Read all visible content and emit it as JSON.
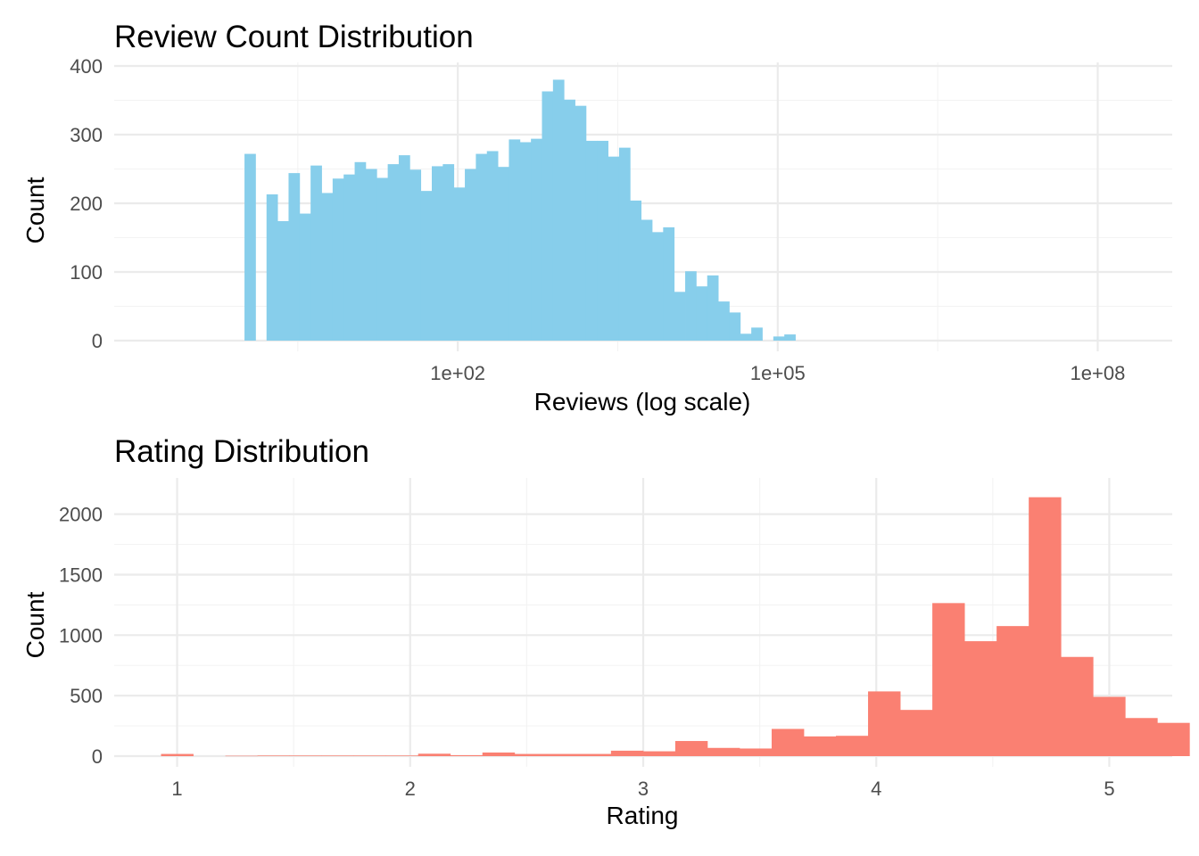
{
  "chart_data": [
    {
      "type": "bar",
      "title": "Review Count Distribution",
      "xlabel": "Reviews (log scale)",
      "ylabel": "Count",
      "x_scale": "log10",
      "xlim": [
        0.06,
        500000000
      ],
      "ylim": [
        0,
        400
      ],
      "grid": true,
      "color": "#87CEEB",
      "x_ticks": [
        {
          "value": 100,
          "label": "1e+02"
        },
        {
          "value": 100000,
          "label": "1e+05"
        },
        {
          "value": 100000000,
          "label": "1e+08"
        }
      ],
      "y_ticks": [
        {
          "value": 0,
          "label": "0"
        },
        {
          "value": 100,
          "label": "100"
        },
        {
          "value": 200,
          "label": "200"
        },
        {
          "value": 300,
          "label": "300"
        },
        {
          "value": 400,
          "label": "400"
        }
      ],
      "bin_width_log10": 0.1033,
      "first_bin_start": 1,
      "counts": [
        272,
        0,
        213,
        174,
        244,
        185,
        255,
        215,
        236,
        242,
        260,
        250,
        237,
        257,
        270,
        249,
        218,
        254,
        257,
        223,
        250,
        272,
        276,
        253,
        293,
        289,
        294,
        363,
        380,
        351,
        342,
        291,
        291,
        268,
        281,
        204,
        176,
        158,
        165,
        71,
        101,
        79,
        95,
        57,
        41,
        10,
        19,
        0,
        6,
        9
      ]
    },
    {
      "type": "bar",
      "title": "Rating Distribution",
      "xlabel": "Rating",
      "ylabel": "Count",
      "xlim": [
        0.73,
        5.27
      ],
      "ylim": [
        0,
        2270
      ],
      "grid": true,
      "color": "#FA8072",
      "x_ticks": [
        {
          "value": 1,
          "label": "1"
        },
        {
          "value": 2,
          "label": "2"
        },
        {
          "value": 3,
          "label": "3"
        },
        {
          "value": 4,
          "label": "4"
        },
        {
          "value": 5,
          "label": "5"
        }
      ],
      "y_ticks": [
        {
          "value": 0,
          "label": "0"
        },
        {
          "value": 500,
          "label": "500"
        },
        {
          "value": 1000,
          "label": "1000"
        },
        {
          "value": 1500,
          "label": "1500"
        },
        {
          "value": 2000,
          "label": "2000"
        }
      ],
      "bin_width": 0.1379,
      "first_bin_start": 0.931,
      "counts": [
        18,
        0,
        3,
        5,
        5,
        5,
        5,
        5,
        20,
        8,
        30,
        18,
        18,
        18,
        45,
        40,
        125,
        68,
        63,
        225,
        163,
        168,
        535,
        382,
        1265,
        950,
        1075,
        2140,
        820,
        490,
        315,
        275
      ]
    }
  ]
}
